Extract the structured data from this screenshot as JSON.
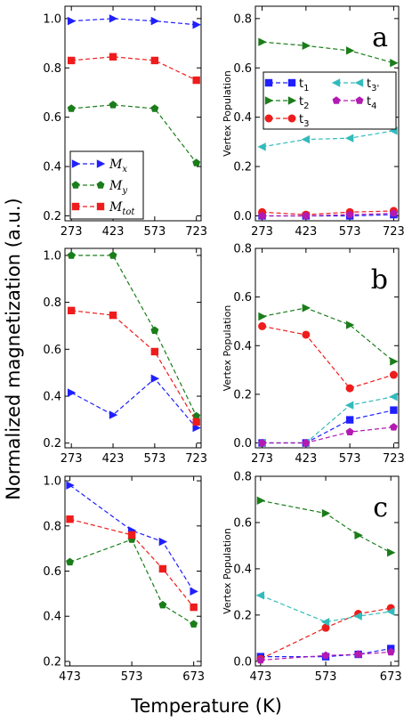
{
  "figure": {
    "ylabel": "Normalized magnetization (a.u.)",
    "xlabel": "Temperature (K)"
  },
  "colors": {
    "blue": "#1f1fff",
    "green": "#1a7d1a",
    "red": "#ee1c1c",
    "cyan": "#33bbbb",
    "magenta": "#b21ab2"
  },
  "chart_data": [
    {
      "id": "a-left",
      "type": "line",
      "x": [
        273,
        423,
        573,
        723
      ],
      "xticks": [
        "273",
        "423",
        "573",
        "723"
      ],
      "xlim": [
        250,
        740
      ],
      "ylim": [
        0.18,
        1.05
      ],
      "yticks": [
        0.2,
        0.4,
        0.6,
        0.8,
        1.0
      ],
      "ytick_labels": [
        "0.2",
        "0.4",
        "0.6",
        "0.8",
        "1.0"
      ],
      "series": [
        {
          "name": "Mx",
          "color": "blue",
          "marker": "tri-right",
          "values": [
            0.99,
            1.0,
            0.99,
            0.975
          ]
        },
        {
          "name": "My",
          "color": "green",
          "marker": "pentagon",
          "values": [
            0.635,
            0.65,
            0.635,
            0.415
          ]
        },
        {
          "name": "Mtot",
          "color": "red",
          "marker": "square",
          "values": [
            0.83,
            0.845,
            0.83,
            0.75
          ]
        }
      ],
      "legend": {
        "position": "lower-left",
        "style": "math",
        "entries": [
          {
            "series": 0,
            "base": "M",
            "sub": "x"
          },
          {
            "series": 1,
            "base": "M",
            "sub": "y"
          },
          {
            "series": 2,
            "base": "M",
            "sub": "tot"
          }
        ]
      }
    },
    {
      "id": "a-right",
      "type": "line",
      "x": [
        273,
        423,
        573,
        723
      ],
      "xticks": [
        "273",
        "423",
        "573",
        "723"
      ],
      "xlim": [
        250,
        740
      ],
      "ylim": [
        -0.02,
        0.85
      ],
      "yticks": [
        0.0,
        0.2,
        0.4,
        0.6,
        0.8
      ],
      "ytick_labels": [
        "0.0",
        "0.2",
        "0.4",
        "0.6",
        "0.8"
      ],
      "ylabel": "Vertex Population",
      "panel_label": "a",
      "series": [
        {
          "name": "t1",
          "color": "blue",
          "marker": "square",
          "values": [
            0.0,
            0.0,
            0.0,
            0.005
          ]
        },
        {
          "name": "t2",
          "color": "green",
          "marker": "tri-right",
          "values": [
            0.705,
            0.69,
            0.67,
            0.62
          ]
        },
        {
          "name": "t3",
          "color": "red",
          "marker": "circle",
          "values": [
            0.015,
            0.005,
            0.015,
            0.02
          ]
        },
        {
          "name": "t3'",
          "color": "cyan",
          "marker": "tri-left",
          "values": [
            0.28,
            0.31,
            0.315,
            0.345
          ]
        },
        {
          "name": "t4",
          "color": "magenta",
          "marker": "pentagon",
          "values": [
            0.0,
            0.0,
            0.005,
            0.01
          ]
        }
      ],
      "legend": {
        "position": "upper",
        "style": "sub",
        "entries": [
          {
            "series": 0,
            "base": "t",
            "sub": "1"
          },
          {
            "series": 3,
            "base": "t",
            "sub": "3'"
          },
          {
            "series": 1,
            "base": "t",
            "sub": "2"
          },
          {
            "series": 4,
            "base": "t",
            "sub": "4"
          },
          {
            "series": 2,
            "base": "t",
            "sub": "3"
          }
        ]
      }
    },
    {
      "id": "b-left",
      "type": "line",
      "x": [
        273,
        423,
        573,
        723
      ],
      "xticks": [
        "273",
        "423",
        "573",
        "723"
      ],
      "xlim": [
        250,
        740
      ],
      "ylim": [
        0.18,
        1.03
      ],
      "yticks": [
        0.2,
        0.4,
        0.6,
        0.8,
        1.0
      ],
      "ytick_labels": [
        "0.2",
        "0.4",
        "0.6",
        "0.8",
        "1.0"
      ],
      "series": [
        {
          "name": "Mx",
          "color": "blue",
          "marker": "tri-right",
          "values": [
            0.415,
            0.32,
            0.475,
            0.265
          ]
        },
        {
          "name": "My",
          "color": "green",
          "marker": "pentagon",
          "values": [
            1.0,
            1.0,
            0.68,
            0.315
          ]
        },
        {
          "name": "Mtot",
          "color": "red",
          "marker": "square",
          "values": [
            0.765,
            0.745,
            0.59,
            0.29
          ]
        }
      ]
    },
    {
      "id": "b-right",
      "type": "line",
      "x": [
        273,
        423,
        573,
        723
      ],
      "xticks": [
        "273",
        "423",
        "573",
        "723"
      ],
      "xlim": [
        250,
        740
      ],
      "ylim": [
        -0.02,
        0.8
      ],
      "yticks": [
        0.0,
        0.2,
        0.4,
        0.6,
        0.8
      ],
      "ytick_labels": [
        "0.0",
        "0.2",
        "0.4",
        "0.6",
        "0.8"
      ],
      "ylabel": "Vertex Population",
      "panel_label": "b",
      "series": [
        {
          "name": "t1",
          "color": "blue",
          "marker": "square",
          "values": [
            0.0,
            0.0,
            0.095,
            0.135
          ]
        },
        {
          "name": "t2",
          "color": "green",
          "marker": "tri-right",
          "values": [
            0.52,
            0.555,
            0.485,
            0.335
          ]
        },
        {
          "name": "t3",
          "color": "red",
          "marker": "circle",
          "values": [
            0.48,
            0.445,
            0.225,
            0.28
          ]
        },
        {
          "name": "t3'",
          "color": "cyan",
          "marker": "tri-left",
          "values": [
            0.0,
            0.0,
            0.155,
            0.19
          ]
        },
        {
          "name": "t4",
          "color": "magenta",
          "marker": "pentagon",
          "values": [
            0.0,
            0.0,
            0.045,
            0.065
          ]
        }
      ]
    },
    {
      "id": "c-left",
      "type": "line",
      "x": [
        473,
        573,
        623,
        673
      ],
      "xticks": [
        "473",
        "573",
        "673"
      ],
      "xlim": [
        465,
        685
      ],
      "ylim": [
        0.18,
        1.02
      ],
      "yticks": [
        0.2,
        0.4,
        0.6,
        0.8,
        1.0
      ],
      "ytick_labels": [
        "0.2",
        "0.4",
        "0.6",
        "0.8",
        "1.0"
      ],
      "series": [
        {
          "name": "Mx",
          "color": "blue",
          "marker": "tri-right",
          "values": [
            0.98,
            0.78,
            0.73,
            0.51
          ]
        },
        {
          "name": "My",
          "color": "green",
          "marker": "pentagon",
          "values": [
            0.64,
            0.74,
            0.45,
            0.365
          ]
        },
        {
          "name": "Mtot",
          "color": "red",
          "marker": "square",
          "values": [
            0.83,
            0.76,
            0.61,
            0.44
          ]
        }
      ]
    },
    {
      "id": "c-right",
      "type": "line",
      "x": [
        473,
        573,
        623,
        673
      ],
      "xticks": [
        "473",
        "573",
        "673"
      ],
      "xlim": [
        465,
        685
      ],
      "ylim": [
        -0.02,
        0.8
      ],
      "yticks": [
        0.0,
        0.2,
        0.4,
        0.6,
        0.8
      ],
      "ytick_labels": [
        "0.0",
        "0.2",
        "0.4",
        "0.6",
        "0.8"
      ],
      "ylabel": "Vertex Population",
      "panel_label": "c",
      "series": [
        {
          "name": "t1",
          "color": "blue",
          "marker": "square",
          "values": [
            0.02,
            0.02,
            0.03,
            0.055
          ]
        },
        {
          "name": "t2",
          "color": "green",
          "marker": "tri-right",
          "values": [
            0.695,
            0.64,
            0.545,
            0.47
          ]
        },
        {
          "name": "t3",
          "color": "red",
          "marker": "circle",
          "values": [
            0.01,
            0.145,
            0.205,
            0.23
          ]
        },
        {
          "name": "t3'",
          "color": "cyan",
          "marker": "tri-left",
          "values": [
            0.285,
            0.17,
            0.195,
            0.215
          ]
        },
        {
          "name": "t4",
          "color": "magenta",
          "marker": "pentagon",
          "values": [
            0.005,
            0.025,
            0.03,
            0.04
          ]
        }
      ]
    }
  ]
}
